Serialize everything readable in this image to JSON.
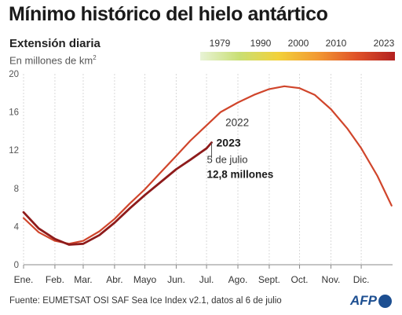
{
  "title": "Mínimo histórico del hielo antártico",
  "subtitle": "Extensión diaria",
  "units_text": "En millones de km",
  "units_sup": "2",
  "legend": {
    "ticks": [
      "1979",
      "1990",
      "2000",
      "2010",
      "2023"
    ],
    "colors": [
      "#e8f3d6",
      "#c9df74",
      "#f2d13a",
      "#f29a33",
      "#e05329",
      "#b3201f"
    ]
  },
  "source": "Fuente: EUMETSAT OSI SAF Sea Ice Index v2.1, datos al 6 de julio",
  "logo": "AFP",
  "chart_data": {
    "type": "line",
    "x_labels": [
      "Ene.",
      "Feb.",
      "Mar.",
      "Abr.",
      "Mayo",
      "Jun.",
      "Jul.",
      "Ago.",
      "Sept.",
      "Oct.",
      "Nov.",
      "Dic."
    ],
    "y_ticks": [
      0,
      4,
      8,
      12,
      16,
      20
    ],
    "ylim": [
      0,
      20
    ],
    "xlim": [
      0,
      365
    ],
    "grid": "vertical",
    "series": [
      {
        "name": "2022",
        "color": "#d0452b",
        "x": [
          0,
          15,
          31,
          45,
          59,
          75,
          90,
          105,
          120,
          135,
          151,
          165,
          181,
          195,
          212,
          228,
          243,
          258,
          273,
          288,
          304,
          320,
          334,
          350,
          364
        ],
        "y": [
          4.9,
          3.4,
          2.5,
          2.2,
          2.5,
          3.5,
          4.8,
          6.4,
          7.9,
          9.6,
          11.4,
          13.0,
          14.6,
          16.0,
          17.0,
          17.8,
          18.4,
          18.7,
          18.5,
          17.8,
          16.3,
          14.3,
          12.2,
          9.3,
          6.2
        ]
      },
      {
        "name": "2023",
        "color": "#8e1b1b",
        "x": [
          0,
          15,
          31,
          45,
          59,
          75,
          90,
          105,
          120,
          135,
          151,
          165,
          181,
          186
        ],
        "y": [
          5.5,
          3.8,
          2.7,
          2.1,
          2.2,
          3.1,
          4.4,
          5.9,
          7.3,
          8.6,
          10.0,
          11.0,
          12.2,
          12.8
        ]
      }
    ],
    "annotations": {
      "label_2022": "2022",
      "label_2023": "2023",
      "date": "5 de julio",
      "value": "12,8 millones"
    }
  }
}
